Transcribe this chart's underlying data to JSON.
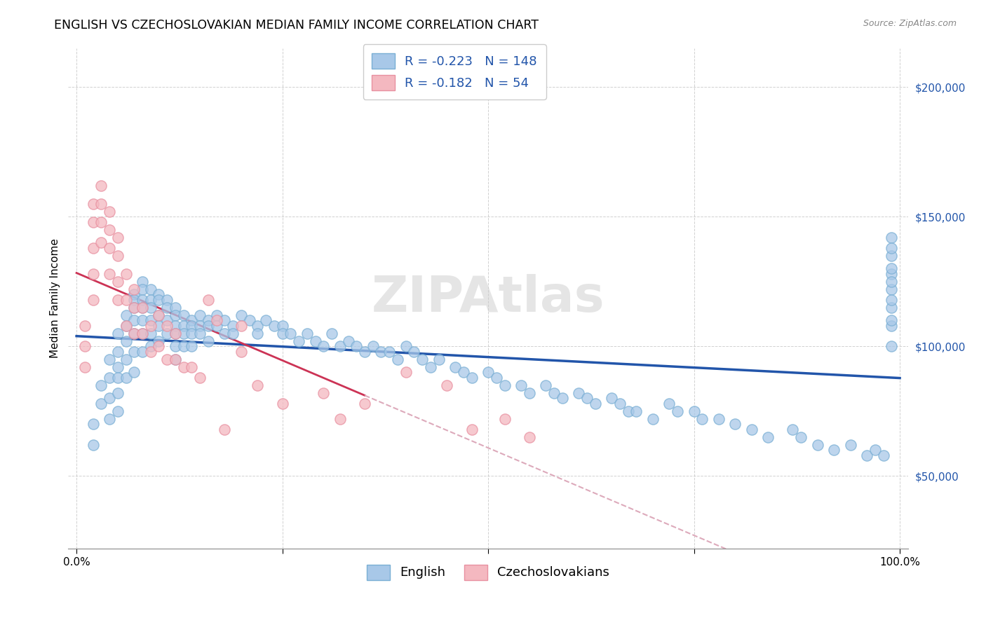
{
  "title": "ENGLISH VS CZECHOSLOVAKIAN MEDIAN FAMILY INCOME CORRELATION CHART",
  "source": "Source: ZipAtlas.com",
  "ylabel": "Median Family Income",
  "yticks": [
    50000,
    100000,
    150000,
    200000
  ],
  "ytick_labels": [
    "$50,000",
    "$100,000",
    "$150,000",
    "$200,000"
  ],
  "xlim": [
    -0.01,
    1.01
  ],
  "ylim": [
    22000,
    215000
  ],
  "english_color": "#a8c8e8",
  "czech_color": "#f4b8c0",
  "english_edge": "#7aafd4",
  "czech_edge": "#e890a0",
  "english_R": -0.223,
  "english_N": 148,
  "czech_R": -0.182,
  "czech_N": 54,
  "trend_english_color": "#2255aa",
  "trend_czech_solid_color": "#cc3355",
  "trend_czech_dash_color": "#ddaabb",
  "background_color": "#ffffff",
  "title_fontsize": 12.5,
  "axis_label_fontsize": 11,
  "tick_fontsize": 11,
  "legend_fontsize": 13,
  "watermark": "ZIPAtlas",
  "english_x": [
    0.02,
    0.02,
    0.03,
    0.03,
    0.04,
    0.04,
    0.04,
    0.04,
    0.05,
    0.05,
    0.05,
    0.05,
    0.05,
    0.05,
    0.06,
    0.06,
    0.06,
    0.06,
    0.06,
    0.07,
    0.07,
    0.07,
    0.07,
    0.07,
    0.07,
    0.07,
    0.08,
    0.08,
    0.08,
    0.08,
    0.08,
    0.08,
    0.08,
    0.09,
    0.09,
    0.09,
    0.09,
    0.09,
    0.09,
    0.1,
    0.1,
    0.1,
    0.1,
    0.1,
    0.11,
    0.11,
    0.11,
    0.11,
    0.12,
    0.12,
    0.12,
    0.12,
    0.12,
    0.12,
    0.13,
    0.13,
    0.13,
    0.13,
    0.14,
    0.14,
    0.14,
    0.14,
    0.15,
    0.15,
    0.15,
    0.16,
    0.16,
    0.16,
    0.17,
    0.17,
    0.18,
    0.18,
    0.19,
    0.19,
    0.2,
    0.21,
    0.22,
    0.22,
    0.23,
    0.24,
    0.25,
    0.25,
    0.26,
    0.27,
    0.28,
    0.29,
    0.3,
    0.31,
    0.32,
    0.33,
    0.34,
    0.35,
    0.36,
    0.37,
    0.38,
    0.39,
    0.4,
    0.41,
    0.42,
    0.43,
    0.44,
    0.46,
    0.47,
    0.48,
    0.5,
    0.51,
    0.52,
    0.54,
    0.55,
    0.57,
    0.58,
    0.59,
    0.61,
    0.62,
    0.63,
    0.65,
    0.66,
    0.67,
    0.68,
    0.7,
    0.72,
    0.73,
    0.75,
    0.76,
    0.78,
    0.8,
    0.82,
    0.84,
    0.87,
    0.88,
    0.9,
    0.92,
    0.94,
    0.96,
    0.97,
    0.98,
    0.99,
    0.99,
    0.99,
    0.99,
    0.99,
    0.99,
    0.99,
    0.99,
    0.99,
    0.99,
    0.99,
    0.99
  ],
  "english_y": [
    70000,
    62000,
    85000,
    78000,
    95000,
    88000,
    80000,
    72000,
    105000,
    98000,
    92000,
    88000,
    82000,
    75000,
    112000,
    108000,
    102000,
    95000,
    88000,
    120000,
    118000,
    115000,
    110000,
    105000,
    98000,
    90000,
    125000,
    122000,
    118000,
    115000,
    110000,
    105000,
    98000,
    122000,
    118000,
    115000,
    110000,
    105000,
    100000,
    120000,
    118000,
    112000,
    108000,
    102000,
    118000,
    115000,
    110000,
    105000,
    115000,
    112000,
    108000,
    105000,
    100000,
    95000,
    112000,
    108000,
    105000,
    100000,
    110000,
    108000,
    105000,
    100000,
    112000,
    108000,
    105000,
    110000,
    108000,
    102000,
    112000,
    108000,
    110000,
    105000,
    108000,
    105000,
    112000,
    110000,
    108000,
    105000,
    110000,
    108000,
    108000,
    105000,
    105000,
    102000,
    105000,
    102000,
    100000,
    105000,
    100000,
    102000,
    100000,
    98000,
    100000,
    98000,
    98000,
    95000,
    100000,
    98000,
    95000,
    92000,
    95000,
    92000,
    90000,
    88000,
    90000,
    88000,
    85000,
    85000,
    82000,
    85000,
    82000,
    80000,
    82000,
    80000,
    78000,
    80000,
    78000,
    75000,
    75000,
    72000,
    78000,
    75000,
    75000,
    72000,
    72000,
    70000,
    68000,
    65000,
    68000,
    65000,
    62000,
    60000,
    62000,
    58000,
    60000,
    58000,
    135000,
    128000,
    122000,
    115000,
    108000,
    100000,
    142000,
    138000,
    130000,
    125000,
    118000,
    110000
  ],
  "czech_x": [
    0.01,
    0.01,
    0.01,
    0.02,
    0.02,
    0.02,
    0.02,
    0.02,
    0.03,
    0.03,
    0.03,
    0.03,
    0.04,
    0.04,
    0.04,
    0.04,
    0.05,
    0.05,
    0.05,
    0.05,
    0.06,
    0.06,
    0.06,
    0.07,
    0.07,
    0.07,
    0.08,
    0.08,
    0.09,
    0.09,
    0.1,
    0.1,
    0.11,
    0.11,
    0.12,
    0.12,
    0.13,
    0.14,
    0.15,
    0.16,
    0.17,
    0.18,
    0.2,
    0.2,
    0.22,
    0.25,
    0.3,
    0.32,
    0.35,
    0.4,
    0.45,
    0.48,
    0.52,
    0.55
  ],
  "czech_y": [
    108000,
    100000,
    92000,
    155000,
    148000,
    138000,
    128000,
    118000,
    162000,
    155000,
    148000,
    140000,
    152000,
    145000,
    138000,
    128000,
    142000,
    135000,
    125000,
    118000,
    128000,
    118000,
    108000,
    122000,
    115000,
    105000,
    115000,
    105000,
    108000,
    98000,
    112000,
    100000,
    108000,
    95000,
    105000,
    95000,
    92000,
    92000,
    88000,
    118000,
    110000,
    68000,
    108000,
    98000,
    85000,
    78000,
    82000,
    72000,
    78000,
    90000,
    85000,
    68000,
    72000,
    65000
  ]
}
